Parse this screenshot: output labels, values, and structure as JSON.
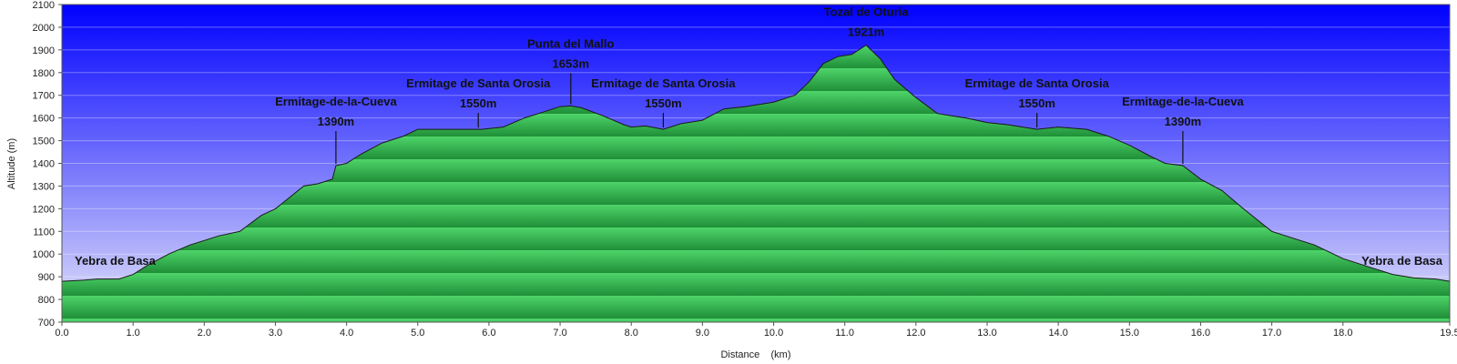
{
  "chart_data": {
    "type": "area",
    "title": "",
    "xlabel": "Distance    (km)",
    "ylabel": "Altitude (m)",
    "xlim": [
      0,
      19.5
    ],
    "ylim": [
      700,
      2100
    ],
    "xticks": [
      "0.0",
      "1.0",
      "2.0",
      "3.0",
      "4.0",
      "5.0",
      "6.0",
      "7.0",
      "8.0",
      "9.0",
      "10.0",
      "11.0",
      "12.0",
      "13.0",
      "14.0",
      "15.0",
      "16.0",
      "17.0",
      "18.0",
      "19.5"
    ],
    "yticks": [
      "700",
      "800",
      "900",
      "1000",
      "1100",
      "1200",
      "1300",
      "1400",
      "1500",
      "1600",
      "1700",
      "1800",
      "1900",
      "2000",
      "2100"
    ],
    "grid": true,
    "colors": {
      "sky_top": "#0000ff",
      "sky_bottom": "#e6e6fa",
      "fill_light": "#4fd46a",
      "fill_dark": "#1f8f38",
      "line": "#1a1a1a"
    },
    "series": [
      {
        "x": [
          0.0,
          0.3,
          0.5,
          0.8,
          1.0,
          1.2,
          1.5,
          1.8,
          2.0,
          2.2,
          2.5,
          2.8,
          3.0,
          3.2,
          3.4,
          3.6,
          3.8,
          3.85,
          4.0,
          4.2,
          4.5,
          4.8,
          5.0,
          5.3,
          5.6,
          5.9,
          6.2,
          6.5,
          6.8,
          7.0,
          7.15,
          7.3,
          7.6,
          7.9,
          8.0,
          8.2,
          8.45,
          8.7,
          9.0,
          9.3,
          9.6,
          10.0,
          10.3,
          10.5,
          10.7,
          10.9,
          11.1,
          11.3,
          11.5,
          11.7,
          12.0,
          12.3,
          12.5,
          12.7,
          13.0,
          13.3,
          13.7,
          14.0,
          14.4,
          14.7,
          15.0,
          15.3,
          15.5,
          15.75,
          16.0,
          16.3,
          16.6,
          17.0,
          17.3,
          17.6,
          18.0,
          18.4,
          18.7,
          19.0,
          19.3,
          19.5
        ],
        "y": [
          880,
          885,
          890,
          890,
          910,
          950,
          1000,
          1040,
          1060,
          1080,
          1100,
          1170,
          1200,
          1250,
          1300,
          1310,
          1330,
          1390,
          1400,
          1440,
          1490,
          1520,
          1550,
          1550,
          1550,
          1550,
          1560,
          1600,
          1630,
          1650,
          1653,
          1645,
          1610,
          1570,
          1560,
          1565,
          1550,
          1575,
          1590,
          1640,
          1650,
          1670,
          1700,
          1760,
          1840,
          1870,
          1880,
          1921,
          1860,
          1770,
          1690,
          1620,
          1610,
          1600,
          1580,
          1570,
          1550,
          1560,
          1550,
          1520,
          1480,
          1430,
          1400,
          1390,
          1330,
          1280,
          1200,
          1100,
          1070,
          1040,
          980,
          940,
          910,
          895,
          890,
          880
        ]
      }
    ],
    "annotations": [
      {
        "name": "Yebra de Basa",
        "altitude": "",
        "x": 0.5,
        "y": 880,
        "kind": "endpoint"
      },
      {
        "name": "Ermitage-de-la-Cueva",
        "altitude": "1390m",
        "x": 3.85,
        "y": 1390,
        "kind": "marker"
      },
      {
        "name": "Ermitage de Santa Orosia",
        "altitude": "1550m",
        "x": 5.85,
        "y": 1550,
        "kind": "marker"
      },
      {
        "name": "Punta del Mallo",
        "altitude": "1653m",
        "x": 7.15,
        "y": 1653,
        "kind": "marker"
      },
      {
        "name": "Ermitage de Santa Orosia",
        "altitude": "1550m",
        "x": 8.45,
        "y": 1550,
        "kind": "marker"
      },
      {
        "name": "Tozal de Oturia",
        "altitude": "1921m",
        "x": 11.3,
        "y": 1921,
        "kind": "marker"
      },
      {
        "name": "Ermitage de Santa Orosia",
        "altitude": "1550m",
        "x": 13.7,
        "y": 1550,
        "kind": "marker"
      },
      {
        "name": "Ermitage-de-la-Cueva",
        "altitude": "1390m",
        "x": 15.75,
        "y": 1390,
        "kind": "marker"
      },
      {
        "name": "Yebra de Basa",
        "altitude": "",
        "x": 19.0,
        "y": 880,
        "kind": "endpoint"
      }
    ]
  }
}
